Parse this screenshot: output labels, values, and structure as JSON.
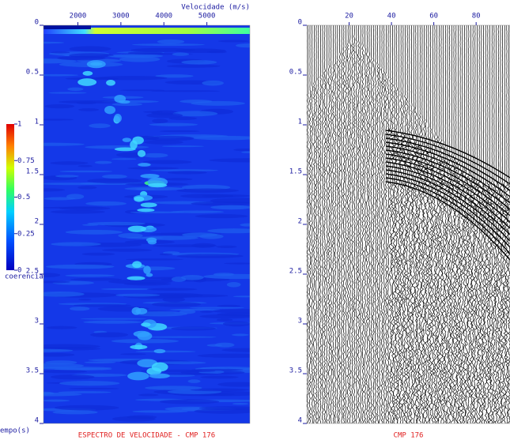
{
  "chart_data": [
    {
      "type": "heatmap",
      "title": "ESPECTRO DE VELOCIDADE - CMP 176",
      "x_label": "Velocidade (m/s)",
      "y_label": "empo(s)",
      "xlim": [
        1200,
        6000
      ],
      "xticks": [
        2000,
        3000,
        4000,
        5000
      ],
      "ylim": [
        0,
        4
      ],
      "yticks": [
        0,
        0.5,
        1,
        1.5,
        2,
        2.5,
        3,
        3.5,
        4
      ],
      "colorbar_label": "coerencia",
      "colorbar_lim": [
        0,
        1
      ],
      "colorbar_ticks": [
        0,
        0.25,
        0.5,
        0.75,
        1
      ]
    },
    {
      "type": "wiggle",
      "title": "CMP 176",
      "xlim": [
        0,
        96
      ],
      "xticks": [
        20,
        40,
        60,
        80
      ],
      "ylim": [
        0,
        4
      ],
      "yticks": [
        0,
        0.5,
        1,
        1.5,
        2,
        2.5,
        3,
        3.5,
        4
      ]
    }
  ]
}
